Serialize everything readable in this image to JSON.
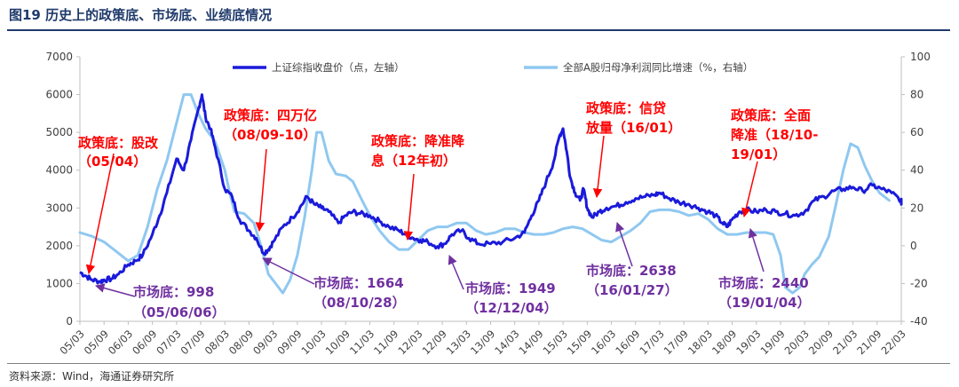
{
  "header": {
    "title": "图19 历史上的政策底、市场底、业绩底情况"
  },
  "footer": {
    "source": "资料来源：Wind，海通证券研究所"
  },
  "colors": {
    "index": "#1a1adb",
    "profit": "#8fc8f0",
    "policy": "#ff0000",
    "market": "#7030a0",
    "axis": "#595959"
  },
  "chart_data": {
    "type": "line",
    "x": [
      "05/03",
      "05/09",
      "06/03",
      "06/09",
      "07/03",
      "07/09",
      "08/03",
      "08/09",
      "09/03",
      "09/09",
      "10/03",
      "10/09",
      "11/03",
      "11/09",
      "12/03",
      "12/09",
      "13/03",
      "13/09",
      "14/03",
      "14/09",
      "15/03",
      "15/09",
      "16/03",
      "16/09",
      "17/03",
      "17/09",
      "18/03",
      "18/09",
      "19/03",
      "19/09",
      "20/03",
      "20/09",
      "21/03",
      "21/09",
      "22/03"
    ],
    "y_left_lim": [
      0,
      7000
    ],
    "y_left_ticks": [
      "0",
      "1000",
      "2000",
      "3000",
      "4000",
      "5000",
      "6000",
      "7000"
    ],
    "y_right_lim": [
      -40,
      100
    ],
    "y_right_ticks": [
      "-40",
      "-20",
      "0",
      "20",
      "40",
      "60",
      "80",
      "100"
    ],
    "series": [
      {
        "name": "上证综指收盘价（点，左轴）",
        "axis": "left",
        "points": [
          [
            0,
            1300
          ],
          [
            0.25,
            1200
          ],
          [
            0.5,
            1100
          ],
          [
            0.85,
            1050
          ],
          [
            1,
            1100
          ],
          [
            1.3,
            1120
          ],
          [
            1.6,
            1250
          ],
          [
            2,
            1500
          ],
          [
            2.3,
            1600
          ],
          [
            2.6,
            1750
          ],
          [
            3,
            2300
          ],
          [
            3.3,
            2800
          ],
          [
            3.6,
            3400
          ],
          [
            4,
            4300
          ],
          [
            4.3,
            4000
          ],
          [
            4.6,
            4800
          ],
          [
            4.9,
            5600
          ],
          [
            5.05,
            6000
          ],
          [
            5.2,
            5400
          ],
          [
            5.4,
            5100
          ],
          [
            5.6,
            4600
          ],
          [
            6,
            3500
          ],
          [
            6.3,
            3300
          ],
          [
            6.6,
            2700
          ],
          [
            7,
            2400
          ],
          [
            7.3,
            2200
          ],
          [
            7.6,
            1800
          ],
          [
            7.8,
            1900
          ],
          [
            8,
            2100
          ],
          [
            8.4,
            2500
          ],
          [
            8.8,
            2750
          ],
          [
            9.1,
            3000
          ],
          [
            9.4,
            3300
          ],
          [
            9.7,
            3100
          ],
          [
            10,
            3000
          ],
          [
            10.3,
            2900
          ],
          [
            10.7,
            2600
          ],
          [
            11,
            2800
          ],
          [
            11.3,
            2900
          ],
          [
            11.6,
            2850
          ],
          [
            12,
            2800
          ],
          [
            12.4,
            2650
          ],
          [
            12.8,
            2500
          ],
          [
            13.2,
            2400
          ],
          [
            13.5,
            2300
          ],
          [
            13.8,
            2200
          ],
          [
            14.1,
            2150
          ],
          [
            14.4,
            2100
          ],
          [
            14.8,
            1980
          ],
          [
            15.1,
            2050
          ],
          [
            15.4,
            2300
          ],
          [
            15.8,
            2400
          ],
          [
            16.1,
            2200
          ],
          [
            16.5,
            2050
          ],
          [
            17,
            2050
          ],
          [
            17.5,
            2100
          ],
          [
            18,
            2200
          ],
          [
            18.4,
            2350
          ],
          [
            18.7,
            2800
          ],
          [
            19,
            3200
          ],
          [
            19.3,
            3700
          ],
          [
            19.6,
            4200
          ],
          [
            19.85,
            4900
          ],
          [
            20,
            5100
          ],
          [
            20.15,
            4500
          ],
          [
            20.3,
            3800
          ],
          [
            20.5,
            3400
          ],
          [
            20.7,
            3200
          ],
          [
            20.85,
            3500
          ],
          [
            21,
            3000
          ],
          [
            21.2,
            2750
          ],
          [
            21.5,
            2900
          ],
          [
            21.8,
            3000
          ],
          [
            22.2,
            3050
          ],
          [
            22.6,
            3150
          ],
          [
            23,
            3250
          ],
          [
            23.4,
            3300
          ],
          [
            23.8,
            3350
          ],
          [
            24,
            3400
          ],
          [
            24.4,
            3250
          ],
          [
            24.8,
            3150
          ],
          [
            25.2,
            3100
          ],
          [
            25.6,
            3000
          ],
          [
            26,
            2900
          ],
          [
            26.3,
            2800
          ],
          [
            26.6,
            2600
          ],
          [
            26.8,
            2500
          ],
          [
            27,
            2700
          ],
          [
            27.3,
            2900
          ],
          [
            27.6,
            2950
          ],
          [
            28,
            2900
          ],
          [
            28.4,
            2950
          ],
          [
            28.8,
            2900
          ],
          [
            29.2,
            2850
          ],
          [
            29.6,
            2800
          ],
          [
            30,
            2900
          ],
          [
            30.4,
            3200
          ],
          [
            30.8,
            3300
          ],
          [
            31.2,
            3450
          ],
          [
            31.6,
            3500
          ],
          [
            32,
            3550
          ],
          [
            32.4,
            3450
          ],
          [
            32.8,
            3600
          ],
          [
            33.2,
            3500
          ],
          [
            33.6,
            3400
          ],
          [
            34,
            3200
          ],
          [
            34,
            3100
          ]
        ]
      },
      {
        "name": "全部A股归母净利润同比增速（%，右轴）",
        "axis": "right",
        "points": [
          [
            0,
            7
          ],
          [
            0.5,
            5
          ],
          [
            1,
            2
          ],
          [
            1.5,
            -3
          ],
          [
            2,
            -8
          ],
          [
            2.4,
            -5
          ],
          [
            2.8,
            10
          ],
          [
            3.2,
            30
          ],
          [
            3.6,
            45
          ],
          [
            4,
            65
          ],
          [
            4.3,
            80
          ],
          [
            4.6,
            80
          ],
          [
            4.9,
            70
          ],
          [
            5.2,
            62
          ],
          [
            5.6,
            55
          ],
          [
            6,
            40
          ],
          [
            6.2,
            28
          ],
          [
            6.4,
            18
          ],
          [
            6.8,
            17
          ],
          [
            7.2,
            12
          ],
          [
            7.5,
            0
          ],
          [
            7.8,
            -15
          ],
          [
            8.1,
            -20
          ],
          [
            8.4,
            -25
          ],
          [
            8.7,
            -18
          ],
          [
            9,
            -5
          ],
          [
            9.3,
            15
          ],
          [
            9.6,
            40
          ],
          [
            9.8,
            60
          ],
          [
            10,
            60
          ],
          [
            10.3,
            45
          ],
          [
            10.6,
            38
          ],
          [
            11,
            37
          ],
          [
            11.3,
            34
          ],
          [
            11.6,
            26
          ],
          [
            12,
            16
          ],
          [
            12.4,
            8
          ],
          [
            12.8,
            2
          ],
          [
            13.2,
            -2
          ],
          [
            13.6,
            -2
          ],
          [
            14,
            3
          ],
          [
            14.4,
            8
          ],
          [
            14.8,
            10
          ],
          [
            15.2,
            10
          ],
          [
            15.6,
            12
          ],
          [
            16,
            12
          ],
          [
            16.4,
            8
          ],
          [
            16.8,
            6
          ],
          [
            17.2,
            7
          ],
          [
            17.6,
            9
          ],
          [
            18,
            9
          ],
          [
            18.4,
            7
          ],
          [
            18.8,
            6
          ],
          [
            19.2,
            6
          ],
          [
            19.6,
            7
          ],
          [
            20,
            9
          ],
          [
            20.4,
            10
          ],
          [
            20.8,
            9
          ],
          [
            21.2,
            6
          ],
          [
            21.6,
            3
          ],
          [
            22,
            2
          ],
          [
            22.4,
            5
          ],
          [
            22.8,
            8
          ],
          [
            23.2,
            12
          ],
          [
            23.6,
            18
          ],
          [
            24,
            19
          ],
          [
            24.4,
            19
          ],
          [
            24.8,
            18
          ],
          [
            25.2,
            16
          ],
          [
            25.6,
            17
          ],
          [
            26,
            14
          ],
          [
            26.4,
            9
          ],
          [
            26.8,
            6
          ],
          [
            27.2,
            6
          ],
          [
            27.6,
            7
          ],
          [
            28,
            7
          ],
          [
            28.4,
            7
          ],
          [
            28.7,
            6
          ],
          [
            29,
            -5
          ],
          [
            29.2,
            -22
          ],
          [
            29.5,
            -25
          ],
          [
            29.8,
            -22
          ],
          [
            30,
            -15
          ],
          [
            30.3,
            -10
          ],
          [
            30.6,
            -6
          ],
          [
            31,
            5
          ],
          [
            31.3,
            22
          ],
          [
            31.6,
            40
          ],
          [
            31.9,
            54
          ],
          [
            32.2,
            52
          ],
          [
            32.5,
            42
          ],
          [
            32.8,
            34
          ],
          [
            33.1,
            28
          ],
          [
            33.5,
            24
          ]
        ]
      }
    ],
    "annotations": {
      "policy": [
        {
          "lines": [
            "政策底：股改",
            "（05/04）"
          ]
        },
        {
          "lines": [
            "政策底：四万亿",
            "（08/09-10）"
          ]
        },
        {
          "lines": [
            "政策底：降准降",
            "息（12年初）"
          ]
        },
        {
          "lines": [
            "政策底：信贷",
            "放量（16/01）"
          ]
        },
        {
          "lines": [
            "政策底：全面",
            "降准（18/10-",
            "19/01）"
          ]
        }
      ],
      "market": [
        {
          "lines": [
            "市场底：998",
            "（05/06/06）"
          ]
        },
        {
          "lines": [
            "市场底：1664",
            "（08/10/28）"
          ]
        },
        {
          "lines": [
            "市场底：1949",
            "（12/12/04）"
          ]
        },
        {
          "lines": [
            "市场底：2638",
            "（16/01/27）"
          ]
        },
        {
          "lines": [
            "市场底：2440",
            "（19/01/04）"
          ]
        }
      ]
    }
  }
}
